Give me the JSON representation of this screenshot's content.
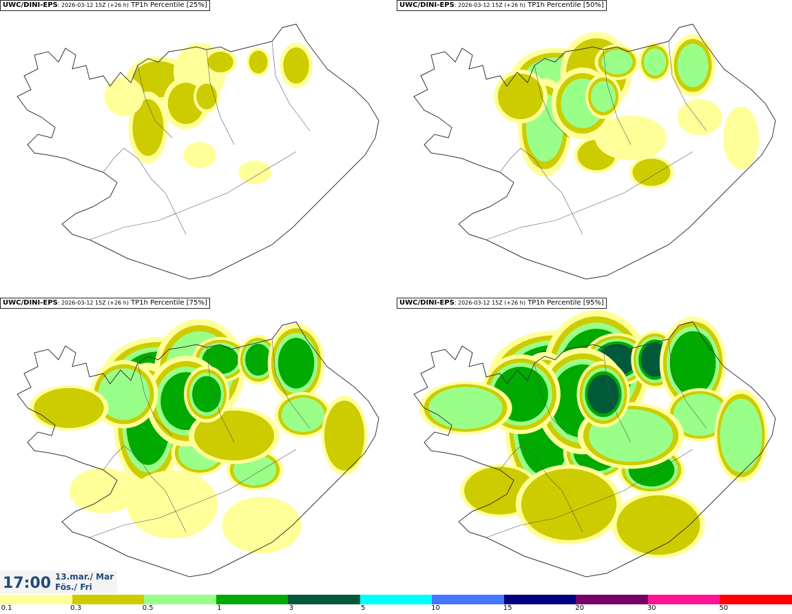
{
  "panels": [
    {
      "model": "UWC/DINI-EPS",
      "run": ": 2026-03-12 15Z (+26 h)",
      "label": " TP1h Percentile [25%]",
      "level": 0.25
    },
    {
      "model": "UWC/DINI-EPS",
      "run": ": 2026-03-12 15Z (+26 h)",
      "label": " TP1h Percentile [50%]",
      "level": 0.5
    },
    {
      "model": "UWC/DINI-EPS",
      "run": ": 2026-03-12 15Z (+26 h)",
      "label": " TP1h Percentile [75%]",
      "level": 0.75
    },
    {
      "model": "UWC/DINI-EPS",
      "run": ": 2026-03-12 15Z (+26 h)",
      "label": " TP1h Percentile [95%]",
      "level": 0.95
    }
  ],
  "valid": {
    "time": "17:00",
    "date_line1": "13.mar./ Mar",
    "date_line2": "Fös./ Fri"
  },
  "legend": {
    "colors": [
      "#ffff9a",
      "#cccc00",
      "#99ff88",
      "#00aa00",
      "#005a3a",
      "#00ffff",
      "#4477ff",
      "#000080",
      "#770066",
      "#ff1493",
      "#ff0000"
    ],
    "ticks": [
      "0.1",
      "0.3",
      "0.5",
      "1",
      "3",
      "5",
      "10",
      "15",
      "20",
      "30",
      "50"
    ]
  }
}
